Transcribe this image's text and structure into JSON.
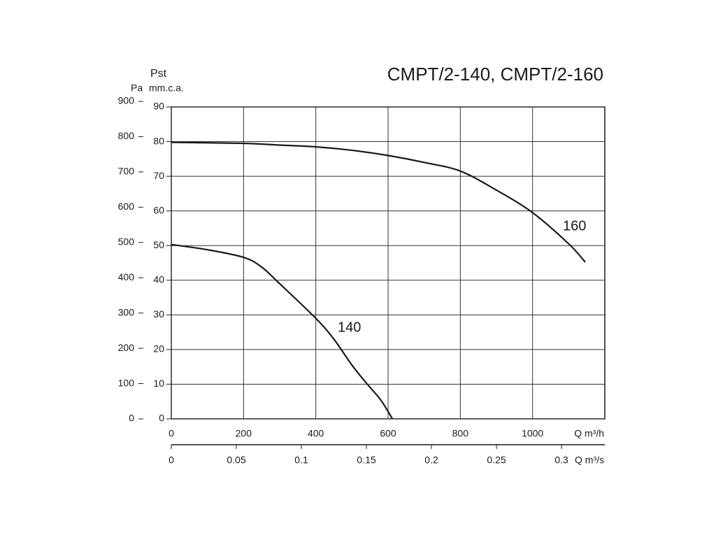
{
  "chart_data": {
    "type": "line",
    "title": "CMPT/2-140, CMPT/2-160",
    "y_label": "Pst",
    "y_unit_label": "mm.c.a.",
    "y2_unit_label": "Pa",
    "x_label": "Q m³/h",
    "x2_label": "Q m³/s",
    "xlim": [
      0,
      1200
    ],
    "xticks": [
      0,
      200,
      400,
      600,
      800,
      1000
    ],
    "x2lim": [
      0,
      0.3333
    ],
    "x2ticks": [
      0,
      0.05,
      0.1,
      0.15,
      0.2,
      0.25,
      0.3
    ],
    "ylim": [
      0,
      90
    ],
    "yticks": [
      0,
      10,
      20,
      30,
      40,
      50,
      60,
      70,
      80,
      90
    ],
    "y2lim": [
      0,
      900
    ],
    "y2ticks": [
      0,
      100,
      200,
      300,
      400,
      500,
      600,
      700,
      800,
      900
    ],
    "grid": true,
    "series": [
      {
        "name": "160",
        "color": "#1a1a1a",
        "x": [
          0,
          200,
          300,
          400,
          500,
          600,
          700,
          800,
          900,
          1000,
          1100,
          1146
        ],
        "values": [
          79.8,
          79.5,
          79,
          78.5,
          77.5,
          76,
          74,
          71.5,
          66,
          59.5,
          50.5,
          45.2
        ]
      },
      {
        "name": "140",
        "color": "#1a1a1a",
        "x": [
          0,
          100,
          200,
          250,
          300,
          400,
          450,
          500,
          540,
          580,
          612
        ],
        "values": [
          50.3,
          48.8,
          46.6,
          43.8,
          39,
          29,
          23,
          15.5,
          10.3,
          5.4,
          0
        ]
      }
    ]
  }
}
